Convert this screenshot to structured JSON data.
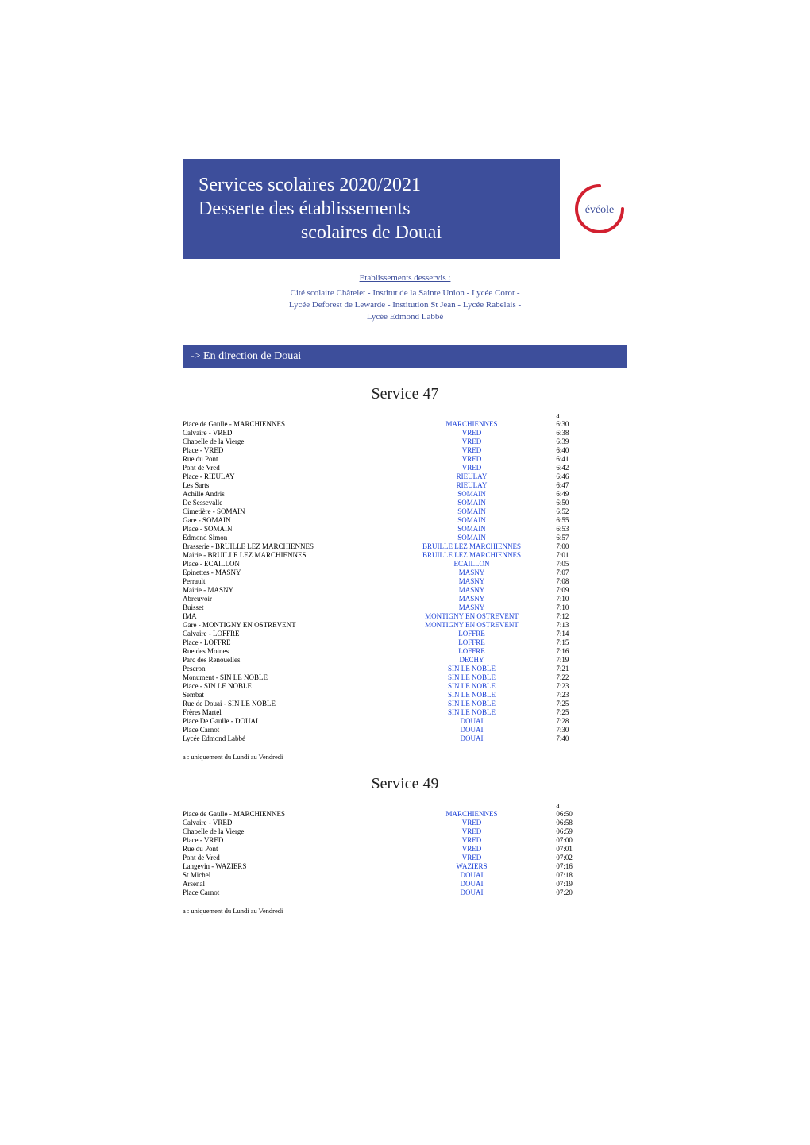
{
  "header": {
    "title_line1": "Services scolaires 2020/2021",
    "title_line2": "Desserte des établissements",
    "title_line3": "scolaires de Douai",
    "logo_text": "évéole",
    "logo_stroke": "#d22030",
    "logo_text_color": "#3d4e9b"
  },
  "etab": {
    "heading": "Etablissements desservis :",
    "lines": [
      "Cité scolaire Châtelet - Institut de la Sainte Union - Lycée Corot -",
      "Lycée Deforest de Lewarde - Institution St Jean - Lycée Rabelais -",
      "Lycée Edmond Labbé"
    ]
  },
  "direction": "-> En direction de Douai",
  "services": [
    {
      "title": "Service 47",
      "col_header": "a",
      "note": "a : uniquement du Lundi au Vendredi",
      "rows": [
        {
          "stop": "Place de Gaulle - MARCHIENNES",
          "link": "MARCHIENNES",
          "time": "6:30"
        },
        {
          "stop": "Calvaire - VRED",
          "link": "VRED",
          "time": "6:38"
        },
        {
          "stop": "Chapelle de la Vierge",
          "link": "VRED",
          "time": "6:39"
        },
        {
          "stop": "Place - VRED",
          "link": "VRED",
          "time": "6:40"
        },
        {
          "stop": "Rue du Pont",
          "link": "VRED",
          "time": "6:41"
        },
        {
          "stop": "Pont de Vred",
          "link": "VRED",
          "time": "6:42"
        },
        {
          "stop": "Place - RIEULAY",
          "link": "RIEULAY",
          "time": "6:46"
        },
        {
          "stop": "Les Sarts",
          "link": "RIEULAY",
          "time": "6:47"
        },
        {
          "stop": "Achille Andris",
          "link": "SOMAIN",
          "time": "6:49"
        },
        {
          "stop": "De Sessevalle",
          "link": "SOMAIN",
          "time": "6:50"
        },
        {
          "stop": "Cimetière - SOMAIN",
          "link": "SOMAIN",
          "time": "6:52"
        },
        {
          "stop": "Gare - SOMAIN",
          "link": "SOMAIN",
          "time": "6:55"
        },
        {
          "stop": "Place - SOMAIN",
          "link": "SOMAIN",
          "time": "6:53"
        },
        {
          "stop": "Edmond Simon",
          "link": "SOMAIN",
          "time": "6:57"
        },
        {
          "stop": "Brasserie - BRUILLE LEZ MARCHIENNES",
          "link": "BRUILLE LEZ MARCHIENNES",
          "time": "7:00"
        },
        {
          "stop": "Mairie - BRUILLE LEZ MARCHIENNES",
          "link": "BRUILLE LEZ MARCHIENNES",
          "time": "7:01"
        },
        {
          "stop": "Place - ECAILLON",
          "link": "ECAILLON",
          "time": "7:05"
        },
        {
          "stop": "Epinettes - MASNY",
          "link": "MASNY",
          "time": "7:07"
        },
        {
          "stop": "Perrault",
          "link": "MASNY",
          "time": "7:08"
        },
        {
          "stop": "Mairie - MASNY",
          "link": "MASNY",
          "time": "7:09"
        },
        {
          "stop": "Abreuvoir",
          "link": "MASNY",
          "time": "7:10"
        },
        {
          "stop": "Buisset",
          "link": "MASNY",
          "time": "7:10"
        },
        {
          "stop": "IMA",
          "link": "MONTIGNY EN OSTREVENT",
          "time": "7:12"
        },
        {
          "stop": "Gare - MONTIGNY EN OSTREVENT",
          "link": "MONTIGNY EN OSTREVENT",
          "time": "7:13"
        },
        {
          "stop": "Calvaire - LOFFRE",
          "link": "LOFFRE",
          "time": "7:14"
        },
        {
          "stop": "Place - LOFFRE",
          "link": "LOFFRE",
          "time": "7:15"
        },
        {
          "stop": "Rue des Moines",
          "link": "LOFFRE",
          "time": "7:16"
        },
        {
          "stop": "Parc des Renouelles",
          "link": "DECHY",
          "time": "7:19"
        },
        {
          "stop": "Pescron",
          "link": "SIN LE NOBLE",
          "time": "7:21"
        },
        {
          "stop": "Monument - SIN LE NOBLE",
          "link": "SIN LE NOBLE",
          "time": "7:22"
        },
        {
          "stop": "Place - SIN LE NOBLE",
          "link": "SIN LE NOBLE",
          "time": "7:23"
        },
        {
          "stop": "Sembat",
          "link": "SIN LE NOBLE",
          "time": "7:23"
        },
        {
          "stop": "Rue de Douai - SIN LE NOBLE",
          "link": "SIN LE NOBLE",
          "time": "7:25"
        },
        {
          "stop": "Frères Martel",
          "link": "SIN LE NOBLE",
          "time": "7:25"
        },
        {
          "stop": "Place De Gaulle - DOUAI",
          "link": "DOUAI",
          "time": "7:28"
        },
        {
          "stop": "Place Carnot",
          "link": "DOUAI",
          "time": "7:30"
        },
        {
          "stop": "Lycée Edmond Labbé",
          "link": "DOUAI",
          "time": "7:40"
        }
      ]
    },
    {
      "title": "Service 49",
      "col_header": "a",
      "note": "a : uniquement du Lundi au Vendredi",
      "rows": [
        {
          "stop": "Place de Gaulle - MARCHIENNES",
          "link": "MARCHIENNES",
          "time": "06:50"
        },
        {
          "stop": "Calvaire - VRED",
          "link": "VRED",
          "time": "06:58"
        },
        {
          "stop": "Chapelle de la Vierge",
          "link": "VRED",
          "time": "06:59"
        },
        {
          "stop": "Place - VRED",
          "link": "VRED",
          "time": "07:00"
        },
        {
          "stop": "Rue du Pont",
          "link": "VRED",
          "time": "07:01"
        },
        {
          "stop": "Pont de Vred",
          "link": "VRED",
          "time": "07:02"
        },
        {
          "stop": "Langevin - WAZIERS",
          "link": "WAZIERS",
          "time": "07:16"
        },
        {
          "stop": "St Michel",
          "link": "DOUAI",
          "time": "07:18"
        },
        {
          "stop": "Arsenal",
          "link": "DOUAI",
          "time": "07:19"
        },
        {
          "stop": "Place Carnot",
          "link": "DOUAI",
          "time": "07:20"
        }
      ]
    }
  ]
}
